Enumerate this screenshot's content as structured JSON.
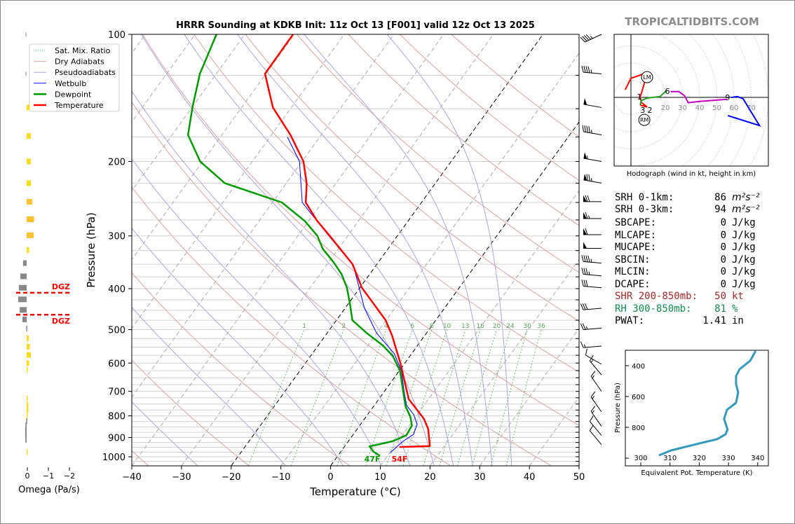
{
  "brand": "TROPICALTIDBITS.COM",
  "legend": [
    {
      "label": "Sat. Mix. Ratio",
      "color": "#4caf50",
      "style": "dotted"
    },
    {
      "label": "Dry Adiabats",
      "color": "#d9a3a3",
      "style": "solid"
    },
    {
      "label": "Pseudoadiabats",
      "color": "#a8a8dc",
      "style": "solid"
    },
    {
      "label": "Wetbulb",
      "color": "#0000ff",
      "style": "solid"
    },
    {
      "label": "Dewpoint",
      "color": "#009900",
      "style": "thick"
    },
    {
      "label": "Temperature",
      "color": "#ff0000",
      "style": "thick"
    }
  ],
  "stats": [
    {
      "label": "SRH 0-1km:",
      "value": "86",
      "unit": "m²s⁻²",
      "color": "#000000"
    },
    {
      "label": "SRH 0-3km:",
      "value": "94",
      "unit": "m²s⁻²",
      "color": "#000000"
    },
    {
      "label": "SBCAPE:",
      "value": "0",
      "unit": "J/kg",
      "color": "#000000"
    },
    {
      "label": "MLCAPE:",
      "value": "0",
      "unit": "J/kg",
      "color": "#000000"
    },
    {
      "label": "MUCAPE:",
      "value": "0",
      "unit": "J/kg",
      "color": "#000000"
    },
    {
      "label": "SBCIN:",
      "value": "0",
      "unit": "J/kg",
      "color": "#000000"
    },
    {
      "label": "MLCIN:",
      "value": "0",
      "unit": "J/kg",
      "color": "#000000"
    },
    {
      "label": "DCAPE:",
      "value": "0",
      "unit": "J/kg",
      "color": "#000000"
    },
    {
      "label": "SHR 200-850mb:",
      "value": "50",
      "unit": "kt",
      "color": "#a52a2a"
    },
    {
      "label": "RH 300-850mb:",
      "value": "81",
      "unit": "%",
      "color": "#138a52"
    },
    {
      "label": "PWAT:",
      "value": "1.41",
      "unit": "in",
      "color": "#000000"
    }
  ],
  "chart_data": [
    {
      "type": "line",
      "title": "HRRR Sounding at KDKB Init: 11z Oct 13 [F001] valid 12z Oct 13 2025",
      "xlabel": "Temperature (°C)",
      "ylabel": "Pressure (hPa)",
      "xlim": [
        -40,
        50
      ],
      "ylim": [
        1050,
        100
      ],
      "yscale": "log",
      "skew": true,
      "grid": true,
      "legend_position": "top-left",
      "xticks": [
        -40,
        -30,
        -20,
        -10,
        0,
        10,
        20,
        30,
        40,
        50
      ],
      "xtick_labels": [
        "−40",
        "−30",
        "−20",
        "−10",
        "0",
        "10",
        "20",
        "30",
        "40",
        "50"
      ],
      "yticks": [
        100,
        200,
        300,
        400,
        500,
        600,
        700,
        800,
        900,
        1000
      ],
      "ytick_labels": [
        "100",
        "200",
        "300",
        "400",
        "500",
        "600",
        "700",
        "800",
        "900",
        "1000"
      ],
      "highlighted_isotherms": [
        -20,
        0
      ],
      "dry_adiabat_base_temps_c": [
        -40,
        -20,
        0,
        20,
        40,
        60,
        80,
        100,
        120,
        140,
        160,
        180
      ],
      "moist_adiabat_base_temps_c": [
        -30,
        -12,
        0,
        8,
        14,
        19,
        23,
        27,
        31,
        35
      ],
      "mixing_ratios": [
        1,
        2,
        4,
        6,
        8,
        10,
        13,
        16,
        20,
        24,
        30,
        36
      ],
      "mixing_ratio_labels": [
        "1",
        "2",
        "4",
        "6",
        "8",
        "10",
        "13",
        "16",
        "20",
        "24",
        "30",
        "36"
      ],
      "series": [
        {
          "name": "Temperature",
          "color": "#ff0000",
          "points": [
            [
              100,
              -70.3
            ],
            [
              124,
              -70.2
            ],
            [
              149,
              -63.7
            ],
            [
              173,
              -56.2
            ],
            [
              200,
              -49.7
            ],
            [
              226,
              -45.8
            ],
            [
              250,
              -43.3
            ],
            [
              276,
              -38.4
            ],
            [
              300,
              -33.6
            ],
            [
              350,
              -24.9
            ],
            [
              398,
              -19.6
            ],
            [
              428,
              -15.7
            ],
            [
              475,
              -10.1
            ],
            [
              516,
              -6.6
            ],
            [
              600,
              -0.9
            ],
            [
              676,
              3.3
            ],
            [
              730,
              6.0
            ],
            [
              768,
              8.8
            ],
            [
              814,
              12.0
            ],
            [
              860,
              14.3
            ],
            [
              943,
              17.1
            ],
            [
              948,
              11.1
            ]
          ]
        },
        {
          "name": "Dewpoint",
          "color": "#009900",
          "points": [
            [
              100,
              -85.7
            ],
            [
              124,
              -83.3
            ],
            [
              149,
              -79.9
            ],
            [
              173,
              -76.8
            ],
            [
              200,
              -70.5
            ],
            [
              225,
              -62.4
            ],
            [
              250,
              -48.1
            ],
            [
              277,
              -40.7
            ],
            [
              300,
              -36.1
            ],
            [
              322,
              -33.1
            ],
            [
              347,
              -28.9
            ],
            [
              370,
              -25.6
            ],
            [
              398,
              -22.6
            ],
            [
              438,
              -19.4
            ],
            [
              475,
              -16.8
            ],
            [
              509,
              -12.1
            ],
            [
              545,
              -7.0
            ],
            [
              577,
              -3.5
            ],
            [
              625,
              0.1
            ],
            [
              690,
              3.3
            ],
            [
              759,
              6.4
            ],
            [
              804,
              8.9
            ],
            [
              843,
              10.5
            ],
            [
              889,
              10.8
            ],
            [
              919,
              8.9
            ],
            [
              945,
              5.0
            ],
            [
              972,
              6.5
            ],
            [
              995,
              8.5
            ]
          ]
        },
        {
          "name": "Wetbulb",
          "color": "#0000ff",
          "points": [
            [
              175,
              -56.5
            ],
            [
              200,
              -50.5
            ],
            [
              250,
              -44.0
            ],
            [
              300,
              -33.8
            ],
            [
              353,
              -24.5
            ],
            [
              445,
              -16.1
            ],
            [
              509,
              -10.1
            ],
            [
              570,
              -3.5
            ],
            [
              625,
              0.4
            ],
            [
              690,
              3.5
            ],
            [
              754,
              6.4
            ],
            [
              795,
              9.3
            ],
            [
              838,
              11.4
            ],
            [
              885,
              12.1
            ],
            [
              919,
              11.0
            ],
            [
              977,
              10.1
            ]
          ]
        }
      ],
      "surface_labels": {
        "dewpoint": "47F",
        "temperature": "54F"
      },
      "wind_barbs_kt": [
        [
          100,
          245,
          45
        ],
        [
          124,
          275,
          45
        ],
        [
          149,
          280,
          50
        ],
        [
          173,
          280,
          45
        ],
        [
          200,
          280,
          55
        ],
        [
          225,
          280,
          75
        ],
        [
          249,
          270,
          70
        ],
        [
          273,
          270,
          65
        ],
        [
          298,
          270,
          60
        ],
        [
          321,
          270,
          50
        ],
        [
          348,
          275,
          45
        ],
        [
          373,
          275,
          35
        ],
        [
          398,
          275,
          30
        ],
        [
          445,
          265,
          30
        ],
        [
          496,
          265,
          25
        ],
        [
          547,
          265,
          15
        ],
        [
          604,
          300,
          10
        ],
        [
          640,
          320,
          15
        ],
        [
          700,
          325,
          15
        ],
        [
          783,
          325,
          15
        ],
        [
          847,
          325,
          15
        ],
        [
          890,
          320,
          10
        ],
        [
          936,
          320,
          10
        ]
      ]
    },
    {
      "type": "line",
      "caption": "Hodograph (wind in kt, height in km)",
      "ring_labels": [
        "20",
        "30",
        "40",
        "50",
        "60",
        "70"
      ],
      "segments": [
        {
          "color": "#ff0000",
          "points": [
            [
              -3.4,
              4.4
            ],
            [
              0,
              11.1
            ],
            [
              6.8,
              13.5
            ],
            [
              8.2,
              9.8
            ],
            [
              6.1,
              2.3
            ],
            [
              5.3,
              0.4
            ],
            [
              6.1,
              -2.9
            ],
            [
              9.4,
              -5.6
            ],
            [
              5.4,
              -4.5
            ]
          ]
        },
        {
          "color": "#22a022",
          "points": [
            [
              5.4,
              -4.5
            ],
            [
              6.1,
              -1.8
            ],
            [
              9.5,
              -0.4
            ],
            [
              17,
              0.5
            ],
            [
              20.4,
              3.7
            ]
          ]
        },
        {
          "color": "#c000c0",
          "points": [
            [
              23.1,
              3.4
            ],
            [
              27.9,
              3.4
            ],
            [
              31.3,
              0.9
            ],
            [
              33.3,
              -3.1
            ],
            [
              39.5,
              -2.4
            ],
            [
              55.8,
              -1.1
            ]
          ]
        },
        {
          "color": "#0000ff",
          "points": [
            [
              58.5,
              -0.1
            ],
            [
              61.9,
              0.5
            ],
            [
              65.3,
              -0.8
            ],
            [
              74.8,
              -16.4
            ],
            [
              56.4,
              -10.6
            ]
          ]
        }
      ],
      "height_labels": [
        {
          "label": "1",
          "u": 4.9,
          "v": 0.4
        },
        {
          "label": "6",
          "u": 21.2,
          "v": 3.7
        },
        {
          "label": "9",
          "u": 56.3,
          "v": 0
        },
        {
          "label": "3",
          "u": 6.9,
          "v": -7.3
        },
        {
          "label": "2",
          "u": 11,
          "v": -7.3
        }
      ],
      "storm_motion": [
        {
          "label": "LM",
          "u": 9.4,
          "v": 11.8
        },
        {
          "label": "RM",
          "u": 7.8,
          "v": -13.1
        }
      ]
    },
    {
      "type": "line",
      "xlabel": "Equivalent Pot. Temperature (K)",
      "ylabel": "Pressure (hPa)",
      "xticks": [
        300,
        310,
        320,
        330,
        340
      ],
      "xtick_labels": [
        "300",
        "310",
        "320",
        "330",
        "340"
      ],
      "yticks": [
        400,
        600,
        800
      ],
      "ytick_labels": [
        "400",
        "600",
        "800"
      ],
      "color": "#3399b8",
      "points": [
        [
          304.5,
          339.3
        ],
        [
          368,
          337.4
        ],
        [
          423,
          333.8
        ],
        [
          468,
          332.6
        ],
        [
          518,
          332.6
        ],
        [
          573,
          333.3
        ],
        [
          641,
          332.6
        ],
        [
          686,
          329.5
        ],
        [
          745,
          328.5
        ],
        [
          814,
          329.7
        ],
        [
          845,
          329.0
        ],
        [
          877,
          326.1
        ],
        [
          905,
          319.9
        ],
        [
          950,
          310.3
        ],
        [
          982,
          306.2
        ]
      ]
    },
    {
      "type": "bar",
      "xlabel": "Omega (Pa/s)",
      "xticks": [
        0,
        -1,
        -2
      ],
      "xtick_labels": [
        "0",
        "−1",
        "−2"
      ],
      "dgz_label": "DGZ",
      "dgz_bounds_hpa": [
        409,
        461
      ],
      "levels": [
        [
          100,
          0
        ],
        [
          124,
          0
        ],
        [
          149,
          -0.15
        ],
        [
          174,
          -0.2
        ],
        [
          200,
          -0.2
        ],
        [
          225,
          -0.2
        ],
        [
          249,
          -0.27
        ],
        [
          274,
          -0.35
        ],
        [
          299,
          -0.33
        ],
        [
          324,
          -0.12
        ],
        [
          348,
          0.17
        ],
        [
          374,
          0.3
        ],
        [
          398,
          0.37
        ],
        [
          424,
          0.4
        ],
        [
          449,
          0.33
        ],
        [
          473,
          0.2
        ],
        [
          497,
          0.02
        ],
        [
          524,
          -0.1
        ],
        [
          549,
          -0.15
        ],
        [
          574,
          -0.2
        ],
        [
          600,
          -0.12
        ],
        [
          623,
          -0.05
        ],
        [
          727,
          -0.03
        ],
        [
          753,
          -0.08
        ],
        [
          773,
          -0.08
        ],
        [
          797,
          -0.04
        ],
        [
          822,
          0.02
        ],
        [
          842,
          0.06
        ],
        [
          866,
          0.07
        ],
        [
          889,
          0.07
        ],
        [
          912,
          0.06
        ],
        [
          975,
          -0.02
        ]
      ]
    }
  ]
}
